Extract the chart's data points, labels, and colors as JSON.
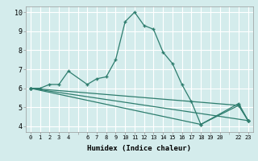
{
  "xlabel": "Humidex (Indice chaleur)",
  "bg_color": "#d4ecec",
  "grid_color": "#ffffff",
  "line_color": "#2e7d6e",
  "xlim": [
    -0.5,
    23.5
  ],
  "ylim": [
    3.7,
    10.3
  ],
  "xtick_labels": [
    "0",
    "1",
    "2",
    "3",
    "4",
    "",
    "6",
    "7",
    "8",
    "9",
    "10",
    "11",
    "12",
    "13",
    "14",
    "15",
    "16",
    "17",
    "18",
    "19",
    "20",
    "",
    "22",
    "23"
  ],
  "yticks": [
    4,
    5,
    6,
    7,
    8,
    9,
    10
  ],
  "series1_x": [
    0,
    1,
    2,
    3,
    4,
    6,
    7,
    8,
    9,
    10,
    11,
    12,
    13,
    14,
    15,
    16,
    17,
    18,
    22,
    23
  ],
  "series1_y": [
    6.0,
    6.0,
    6.2,
    6.2,
    6.9,
    6.2,
    6.5,
    6.6,
    7.5,
    9.5,
    10.0,
    9.3,
    9.1,
    7.9,
    7.3,
    6.2,
    5.3,
    4.1,
    5.2,
    4.3
  ],
  "series2_x": [
    0,
    22,
    23
  ],
  "series2_y": [
    6.0,
    5.1,
    4.3
  ],
  "series3_x": [
    0,
    18,
    22,
    23
  ],
  "series3_y": [
    6.0,
    4.1,
    5.1,
    4.3
  ],
  "series4_x": [
    0,
    23
  ],
  "series4_y": [
    6.0,
    4.3
  ]
}
